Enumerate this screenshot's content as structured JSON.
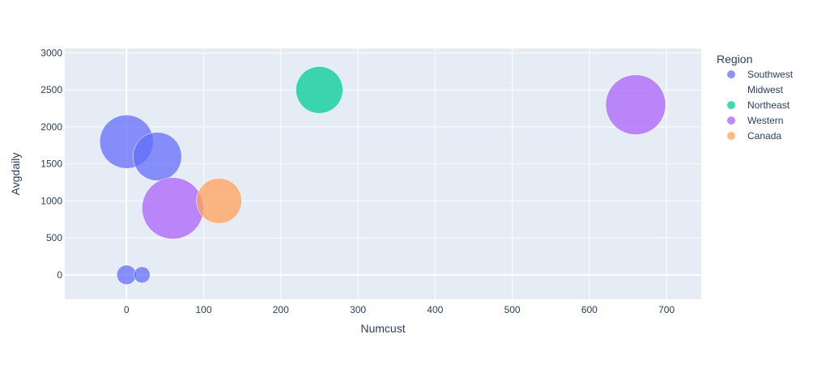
{
  "chart_data": {
    "type": "scatter",
    "title": "",
    "xlabel": "Numcust",
    "ylabel": "Avgdaily",
    "xlim": [
      -80,
      745
    ],
    "ylim": [
      -330,
      3060
    ],
    "x_ticks": [
      0,
      100,
      200,
      300,
      400,
      500,
      600,
      700
    ],
    "y_ticks": [
      0,
      500,
      1000,
      1500,
      2000,
      2500,
      3000
    ],
    "grid": true,
    "legend": {
      "title": "Region",
      "position": "right"
    },
    "colors": {
      "plot_background": "#e5ecf6",
      "grid": "#ffffff",
      "text": "#2a3f5f"
    },
    "series": [
      {
        "name": "Southwest",
        "color": "#636efa",
        "points": [
          {
            "x": 0,
            "y": 1800,
            "size": 33
          },
          {
            "x": 40,
            "y": 1600,
            "size": 30
          },
          {
            "x": 0,
            "y": 0,
            "size": 12
          },
          {
            "x": 20,
            "y": 0,
            "size": 10
          }
        ]
      },
      {
        "name": "Midwest",
        "color": "#EF553B",
        "points": []
      },
      {
        "name": "Northeast",
        "color": "#00cc96",
        "points": [
          {
            "x": 250,
            "y": 2500,
            "size": 29
          }
        ]
      },
      {
        "name": "Western",
        "color": "#ab63fa",
        "points": [
          {
            "x": 660,
            "y": 2300,
            "size": 37
          },
          {
            "x": 60,
            "y": 900,
            "size": 38
          }
        ]
      },
      {
        "name": "Canada",
        "color": "#FFA15A",
        "points": [
          {
            "x": 120,
            "y": 1000,
            "size": 28
          }
        ]
      }
    ]
  }
}
